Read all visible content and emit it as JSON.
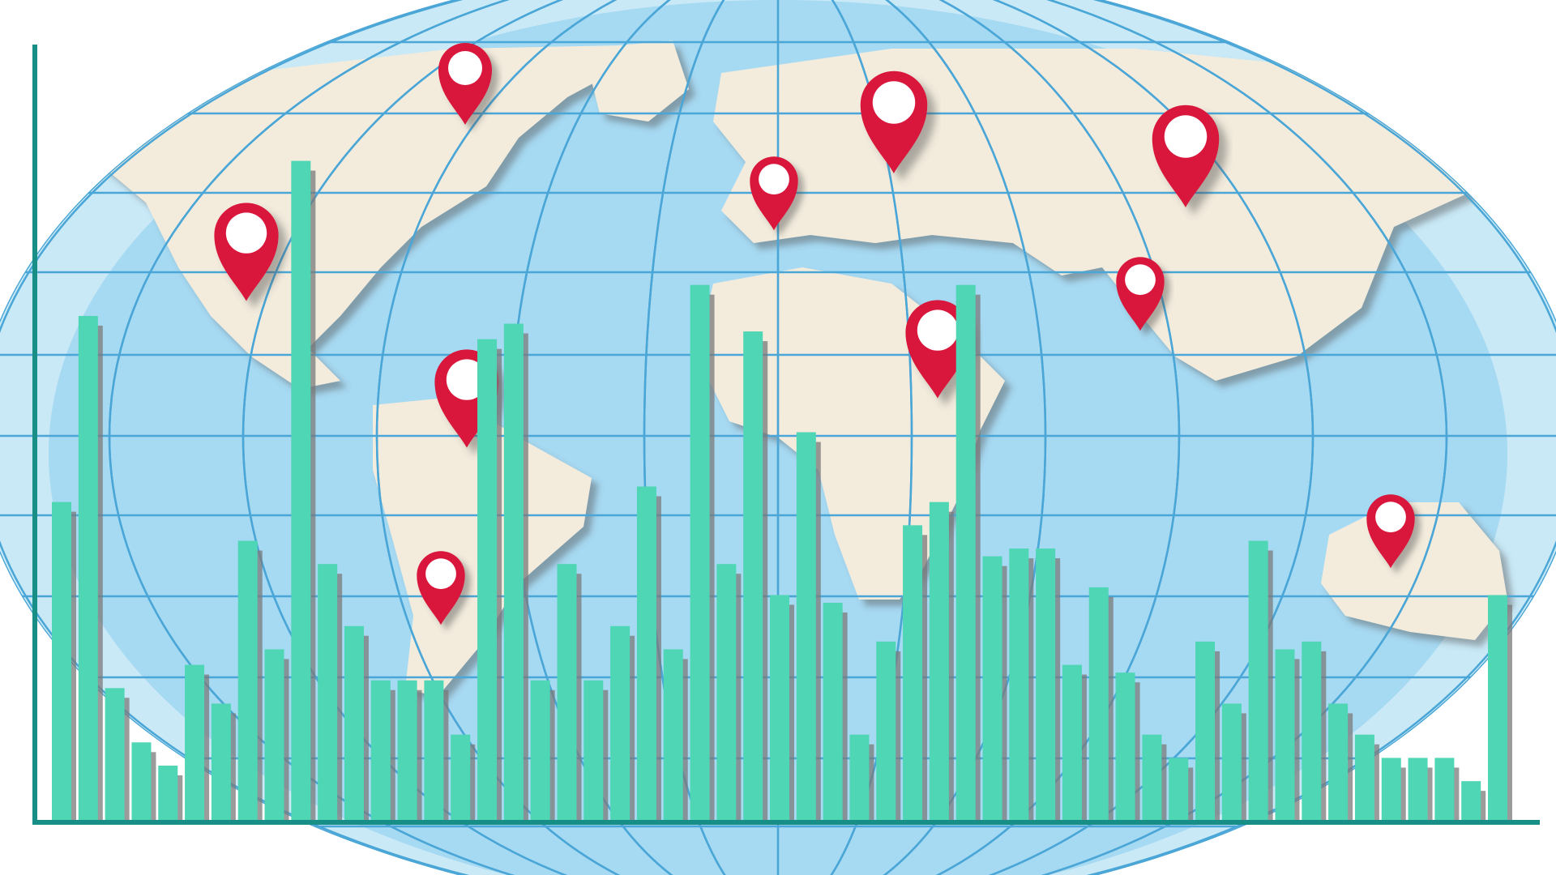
{
  "chart_data": {
    "type": "bar",
    "title": "",
    "xlabel": "",
    "ylabel": "",
    "ylim": [
      0,
      100
    ],
    "grid": false,
    "values": [
      41,
      65,
      17,
      10,
      7,
      20,
      15,
      36,
      22,
      85,
      33,
      25,
      18,
      18,
      18,
      11,
      62,
      64,
      18,
      33,
      18,
      25,
      43,
      22,
      69,
      33,
      63,
      29,
      50,
      28,
      11,
      23,
      38,
      41,
      69,
      34,
      35,
      35,
      20,
      30,
      19,
      11,
      8,
      23,
      15,
      36,
      22,
      23,
      15,
      11,
      8,
      8,
      8,
      5,
      29
    ]
  },
  "colors": {
    "bar": "#4fd6b4",
    "bar_shadow": "#7a7a7a",
    "axis": "#178f86",
    "ocean": "#a6d9f2",
    "ocean_outer": "#c9e9f7",
    "land": "#f3ecdd",
    "grid": "#4aa6d6",
    "pin": "#d9143a"
  },
  "map": {
    "pins": 10,
    "pin_icon": "map-pin-icon"
  }
}
